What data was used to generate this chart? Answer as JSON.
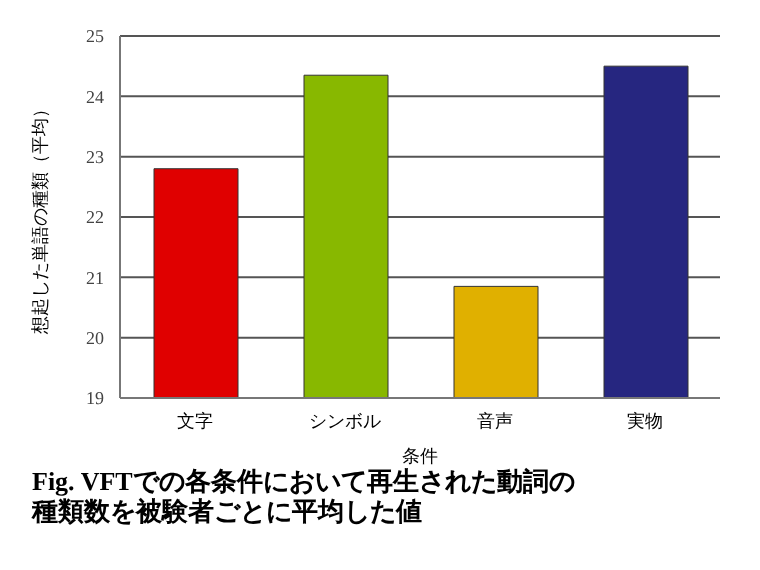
{
  "chart_data": {
    "type": "bar",
    "title": "Fig. VFTでの各条件において再生された動詞の種類数を被験者ごとに平均した値",
    "xlabel": "条件",
    "ylabel": "想起した単語の種類（平均）",
    "categories": [
      "文字",
      "シンボル",
      "音声",
      "実物"
    ],
    "values": [
      22.8,
      24.35,
      20.85,
      24.5
    ],
    "colors": [
      "#e00000",
      "#88b800",
      "#e0b000",
      "#262680"
    ],
    "ylim": [
      19,
      25
    ],
    "yticks": [
      19,
      20,
      21,
      22,
      23,
      24,
      25
    ],
    "grid": "y"
  }
}
